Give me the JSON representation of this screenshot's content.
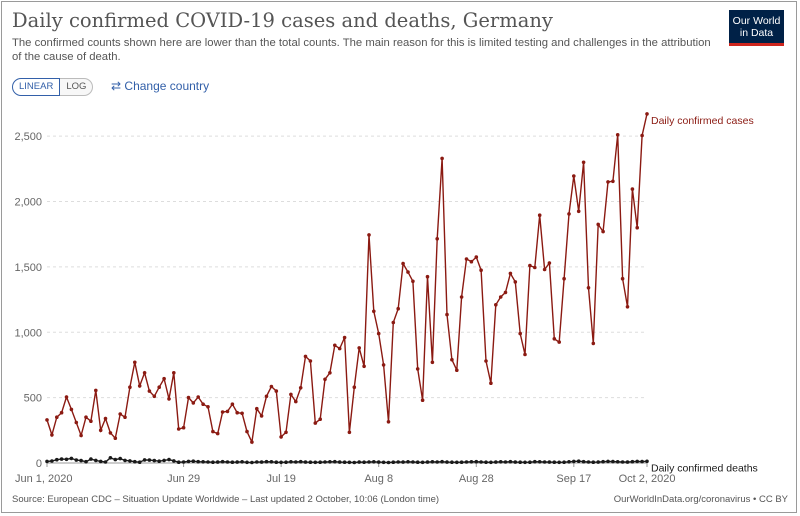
{
  "header": {
    "title": "Daily confirmed COVID-19 cases and deaths, Germany",
    "subtitle": "The confirmed counts shown here are lower than the total counts. The main reason for this is limited testing and challenges in the attribution of the cause of death."
  },
  "logo": {
    "line1": "Our World",
    "line2": "in Data"
  },
  "controls": {
    "linear_label": "LINEAR",
    "log_label": "LOG",
    "change_country_label": "Change country",
    "change_country_icon": "swap-arrows-icon"
  },
  "footer": {
    "source": "Source: European CDC – Situation Update Worldwide – Last updated 2 October, 10:06 (London time)",
    "credit": "OurWorldInData.org/coronavirus • CC BY"
  },
  "colors": {
    "cases": "#8b1a12",
    "deaths": "#1a1a1a",
    "grid": "#dddddd",
    "accent": "#3360a9",
    "logo_bg": "#002147",
    "logo_bar": "#ce261e"
  },
  "chart_data": {
    "type": "line",
    "x_start": "2020-06-01",
    "x_end": "2020-10-02",
    "ylim": [
      0,
      2700
    ],
    "yticks": [
      0,
      500,
      1000,
      1500,
      2000,
      2500
    ],
    "ytick_labels": [
      "0",
      "500",
      "1,000",
      "1,500",
      "2,000",
      "2,500"
    ],
    "xtick_dates": [
      "2020-06-01",
      "2020-06-29",
      "2020-07-19",
      "2020-08-08",
      "2020-08-28",
      "2020-09-17",
      "2020-10-02"
    ],
    "xtick_labels": [
      "Jun 1, 2020",
      "Jun 29",
      "Jul 19",
      "Aug 8",
      "Aug 28",
      "Sep 17",
      "Oct 2, 2020"
    ],
    "grid": "horizontal-dashed",
    "legend": "inline-line-end-labels",
    "series": [
      {
        "name": "Daily confirmed cases",
        "values": [
          330,
          215,
          350,
          385,
          505,
          410,
          310,
          210,
          350,
          320,
          555,
          250,
          340,
          230,
          190,
          375,
          350,
          580,
          770,
          590,
          690,
          550,
          510,
          580,
          645,
          490,
          690,
          260,
          270,
          500,
          460,
          505,
          450,
          430,
          240,
          225,
          390,
          395,
          450,
          385,
          380,
          240,
          160,
          415,
          360,
          510,
          585,
          550,
          200,
          235,
          525,
          470,
          575,
          815,
          780,
          305,
          335,
          640,
          690,
          900,
          875,
          960,
          235,
          580,
          880,
          740,
          1745,
          1160,
          990,
          750,
          315,
          1075,
          1180,
          1525,
          1460,
          1390,
          720,
          480,
          1425,
          770,
          1715,
          2330,
          1135,
          790,
          710,
          1270,
          1560,
          1540,
          1575,
          1475,
          780,
          610,
          1210,
          1270,
          1305,
          1450,
          1385,
          990,
          830,
          1510,
          1495,
          1895,
          1480,
          1530,
          950,
          925,
          1410,
          1905,
          2195,
          1925,
          2300,
          1340,
          915,
          1825,
          1770,
          2150,
          2155,
          2510,
          1410,
          1195,
          2095,
          1800,
          2505,
          2670
        ],
        "label": "Daily confirmed cases"
      },
      {
        "name": "Daily confirmed deaths",
        "values": [
          12,
          15,
          25,
          30,
          28,
          35,
          22,
          18,
          10,
          30,
          20,
          12,
          8,
          40,
          26,
          34,
          20,
          16,
          10,
          6,
          24,
          22,
          18,
          14,
          20,
          26,
          16,
          6,
          8,
          12,
          14,
          10,
          9,
          8,
          6,
          7,
          10,
          8,
          6,
          7,
          9,
          5,
          4,
          8,
          7,
          10,
          9,
          6,
          5,
          6,
          9,
          8,
          10,
          7,
          6,
          5,
          6,
          8,
          9,
          10,
          7,
          6,
          5,
          4,
          7,
          6,
          8,
          9,
          7,
          5,
          4,
          6,
          8,
          7,
          9,
          8,
          6,
          5,
          7,
          9,
          8,
          10,
          7,
          6,
          5,
          6,
          8,
          9,
          10,
          8,
          6,
          5,
          7,
          9,
          8,
          10,
          7,
          6,
          5,
          6,
          10,
          9,
          8,
          7,
          6,
          5,
          6,
          9,
          12,
          14,
          10,
          8,
          6,
          7,
          10,
          12,
          11,
          9,
          8,
          7,
          10,
          12,
          11,
          13
        ],
        "label": "Daily confirmed deaths"
      }
    ]
  }
}
